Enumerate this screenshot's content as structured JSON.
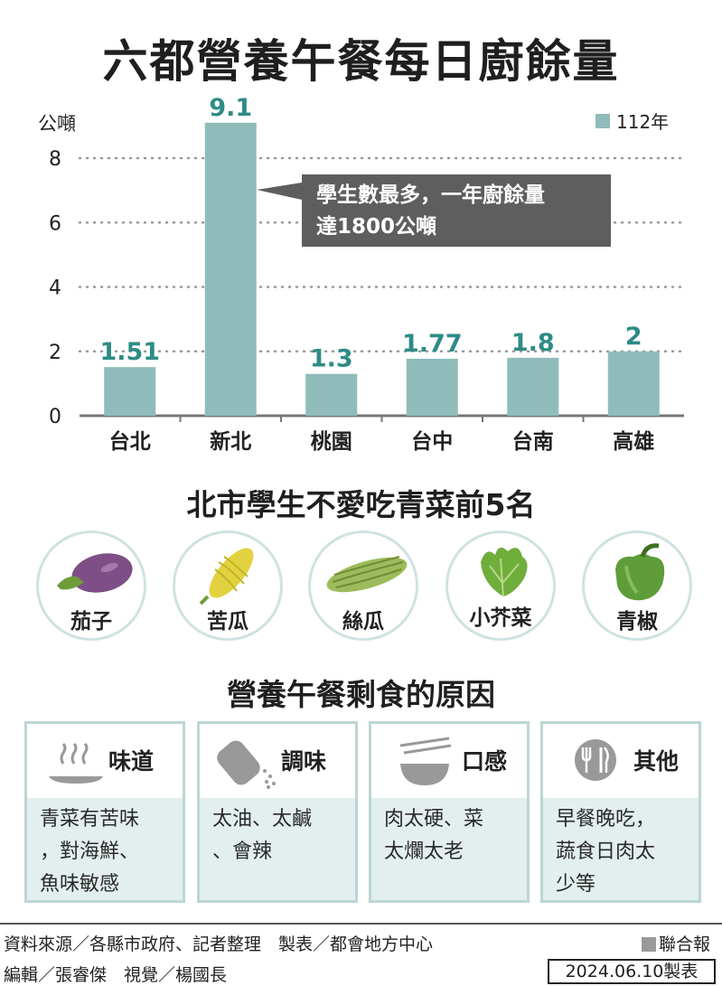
{
  "title": "六都營養午餐每日廚餘量",
  "chart_data": {
    "type": "bar",
    "ylabel": "公噸",
    "yticks": [
      0,
      2,
      4,
      6,
      8
    ],
    "ylim": [
      0,
      9.1
    ],
    "categories": [
      "台北",
      "新北",
      "桃園",
      "台中",
      "台南",
      "高雄"
    ],
    "series": [
      {
        "name": "112年",
        "values": [
          1.51,
          9.1,
          1.3,
          1.77,
          1.8,
          2
        ],
        "color": "#8fbcbb"
      }
    ],
    "value_labels": [
      "1.51",
      "9.1",
      "1.3",
      "1.77",
      "1.8",
      "2"
    ],
    "annotation": [
      "學生數最多，一年廚餘量",
      "達1800公噸"
    ],
    "grid": "dotted horizontal",
    "legend": "top-right"
  },
  "veg_section": {
    "title": "北市學生不愛吃青菜前5名",
    "items": [
      {
        "label": "茄子",
        "icon": "eggplant-icon"
      },
      {
        "label": "苦瓜",
        "icon": "bitter-melon-icon"
      },
      {
        "label": "絲瓜",
        "icon": "loofah-icon"
      },
      {
        "label": "小芥菜",
        "icon": "mustard-greens-icon"
      },
      {
        "label": "青椒",
        "icon": "green-pepper-icon"
      }
    ]
  },
  "reason_section": {
    "title": "營養午餐剩食的原因",
    "boxes": [
      {
        "title": "味道",
        "icon": "steam-plate-icon",
        "lines": [
          "青菜有苦味",
          "，對海鮮、",
          "魚味敏感"
        ]
      },
      {
        "title": "調味",
        "icon": "salt-shaker-icon",
        "lines": [
          "太油、太鹹",
          "、會辣"
        ]
      },
      {
        "title": "口感",
        "icon": "bowl-chopsticks-icon",
        "lines": [
          "肉太硬、菜",
          "太爛太老"
        ]
      },
      {
        "title": "其他",
        "icon": "cutlery-icon",
        "lines": [
          "早餐晚吃，",
          "蔬食日肉太",
          "少等"
        ]
      }
    ]
  },
  "footer": {
    "source": "資料來源／各縣市政府、記者整理　製表／都會地方中心",
    "brand": "聯合報",
    "credits": "編輯／張睿傑　視覺／楊國長",
    "date": "2024.06.10製表"
  },
  "colors": {
    "bar": "#8fbcbb",
    "accent_text": "#2e8b86",
    "panel": "#e2efee",
    "border": "#bcd6d4"
  }
}
